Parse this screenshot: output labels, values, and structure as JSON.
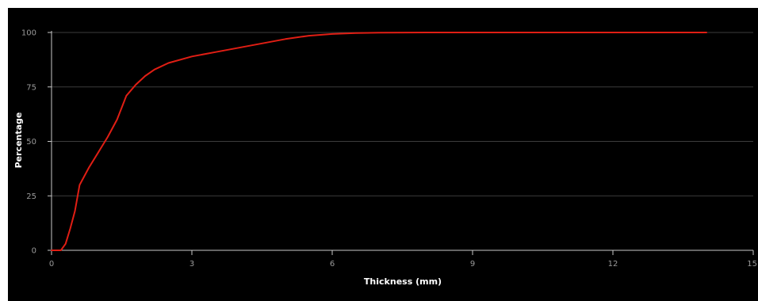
{
  "chart_data": {
    "type": "line",
    "xlabel": "Thickness (mm)",
    "ylabel": "Percentage",
    "xlim": [
      0,
      15
    ],
    "ylim": [
      0,
      100
    ],
    "x_ticks": [
      "0",
      "3",
      "6",
      "9",
      "12",
      "15"
    ],
    "y_ticks": [
      "0",
      "25",
      "50",
      "75",
      "100"
    ],
    "grid": true,
    "background_color": "#000000",
    "axis_color": "#c8c8c8",
    "grid_color": "#3c3c3c",
    "series": [
      {
        "color": "#e01e14",
        "x": [
          0,
          0.2,
          0.3,
          0.4,
          0.5,
          0.6,
          0.8,
          1.0,
          1.2,
          1.4,
          1.6,
          1.8,
          2.0,
          2.2,
          2.5,
          3.0,
          3.5,
          4.0,
          4.5,
          5.0,
          5.5,
          6.0,
          6.5,
          7.0,
          8.0,
          9.0,
          10.0,
          12.0,
          14.0
        ],
        "y": [
          0,
          0,
          3,
          10,
          18,
          30,
          38,
          45,
          52,
          60,
          71,
          76,
          80,
          83,
          86,
          89,
          91,
          93,
          95,
          97,
          98.5,
          99.3,
          99.7,
          99.9,
          100,
          100,
          100,
          100,
          100
        ]
      }
    ]
  }
}
